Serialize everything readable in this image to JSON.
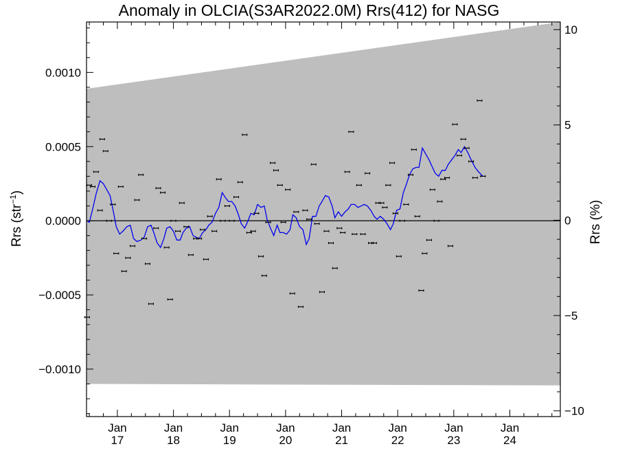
{
  "title": "Anomaly in OLCIA(S3AR2022.0M) Rrs(412) for NASG",
  "chart_data": {
    "type": "scatter",
    "title": "Anomaly in OLCIA(S3AR2022.0M) Rrs(412) for NASG",
    "ylabel_left_prefix": "Rrs (str",
    "ylabel_left_exp": "−1",
    "ylabel_left_suffix": ")",
    "ylabel_right": "Rrs (%)",
    "x_ticklabels": [
      {
        "month": "Jan",
        "year": "17",
        "x": 2017.0
      },
      {
        "month": "Jan",
        "year": "18",
        "x": 2018.0
      },
      {
        "month": "Jan",
        "year": "19",
        "x": 2019.0
      },
      {
        "month": "Jan",
        "year": "20",
        "x": 2020.0
      },
      {
        "month": "Jan",
        "year": "21",
        "x": 2021.0
      },
      {
        "month": "Jan",
        "year": "22",
        "x": 2022.0
      },
      {
        "month": "Jan",
        "year": "23",
        "x": 2023.0
      },
      {
        "month": "Jan",
        "year": "24",
        "x": 2024.0
      }
    ],
    "xlim": [
      2016.45,
      2024.9
    ],
    "ylim_left": [
      -0.00132,
      0.00134
    ],
    "ylim_right": [
      -10.3,
      10.4
    ],
    "y_left_ticks": [
      {
        "v": 0.001,
        "label": "0.0010"
      },
      {
        "v": 0.0005,
        "label": "0.0005"
      },
      {
        "v": 0.0,
        "label": "0.0000"
      },
      {
        "v": -0.0005,
        "label": "−0.0005"
      },
      {
        "v": -0.001,
        "label": "−0.0010"
      }
    ],
    "y_right_ticks": [
      {
        "v": 10,
        "label": "10"
      },
      {
        "v": 5,
        "label": "5"
      },
      {
        "v": 0,
        "label": "0"
      },
      {
        "v": -5,
        "label": "−5"
      },
      {
        "v": -10,
        "label": "−10"
      }
    ],
    "envelope": {
      "color": "#bebebe",
      "upper": [
        [
          2016.45,
          0.00089
        ],
        [
          2024.9,
          0.00134
        ]
      ],
      "lower": [
        [
          2016.45,
          -0.0011
        ],
        [
          2024.9,
          -0.00111
        ]
      ]
    },
    "zero_line": true,
    "series": [
      {
        "kind": "points_with_errorbars",
        "color": "#000000",
        "points": [
          [
            2016.46,
            -0.00065
          ],
          [
            2016.5,
            0.00024
          ],
          [
            2016.56,
            0.00023
          ],
          [
            2016.62,
            0.00033
          ],
          [
            2016.69,
            7e-05
          ],
          [
            2016.73,
            0.00055
          ],
          [
            2016.79,
            0.00047
          ],
          [
            2016.85,
            0.0
          ],
          [
            2016.92,
            0.00011
          ],
          [
            2016.98,
            -0.00022
          ],
          [
            2017.06,
            0.00023
          ],
          [
            2017.12,
            -0.00034
          ],
          [
            2017.19,
            -0.00025
          ],
          [
            2017.27,
            -0.00017
          ],
          [
            2017.35,
            0.00014
          ],
          [
            2017.42,
            0.00031
          ],
          [
            2017.48,
            -0.00012
          ],
          [
            2017.54,
            -0.00029
          ],
          [
            2017.6,
            -0.00056
          ],
          [
            2017.69,
            -5e-05
          ],
          [
            2017.73,
            0.00022
          ],
          [
            2017.81,
            0.00019
          ],
          [
            2017.88,
            -0.00018
          ],
          [
            2017.94,
            -0.00053
          ],
          [
            2018.0,
            0.0
          ],
          [
            2018.08,
            -7e-05
          ],
          [
            2018.15,
            0.00012
          ],
          [
            2018.23,
            -4e-05
          ],
          [
            2018.31,
            -0.00023
          ],
          [
            2018.4,
            -0.00012
          ],
          [
            2018.46,
            -0.00012
          ],
          [
            2018.52,
            -6e-05
          ],
          [
            2018.58,
            -0.00026
          ],
          [
            2018.65,
            3e-05
          ],
          [
            2018.73,
            -7e-05
          ],
          [
            2018.81,
            0.00028
          ],
          [
            2018.88,
            0.0
          ],
          [
            2018.96,
            0.0001
          ],
          [
            2019.04,
            0.0
          ],
          [
            2019.12,
            0.00016
          ],
          [
            2019.19,
            0.00026
          ],
          [
            2019.27,
            0.00058
          ],
          [
            2019.35,
            -8e-05
          ],
          [
            2019.42,
            -7e-05
          ],
          [
            2019.48,
            5e-05
          ],
          [
            2019.56,
            -0.00024
          ],
          [
            2019.62,
            -0.00037
          ],
          [
            2019.69,
            -1e-05
          ],
          [
            2019.77,
            0.00039
          ],
          [
            2019.83,
            0.00034
          ],
          [
            2019.9,
            0.00024
          ],
          [
            2019.96,
            -1e-05
          ],
          [
            2020.04,
            0.00021
          ],
          [
            2020.12,
            -0.00049
          ],
          [
            2020.19,
            6e-05
          ],
          [
            2020.27,
            -0.00058
          ],
          [
            2020.35,
            7e-05
          ],
          [
            2020.42,
            1e-05
          ],
          [
            2020.5,
            0.00038
          ],
          [
            2020.56,
            -2e-05
          ],
          [
            2020.65,
            -0.00048
          ],
          [
            2020.73,
            -7e-05
          ],
          [
            2020.81,
            -0.00015
          ],
          [
            2020.88,
            -0.00032
          ],
          [
            2020.96,
            -5e-05
          ],
          [
            2021.02,
            -8e-05
          ],
          [
            2021.1,
            0.00033
          ],
          [
            2021.17,
            0.0006
          ],
          [
            2021.23,
            -9e-05
          ],
          [
            2021.31,
            0.00024
          ],
          [
            2021.38,
            -9e-05
          ],
          [
            2021.46,
            0.00032
          ],
          [
            2021.52,
            -0.00015
          ],
          [
            2021.58,
            -0.00015
          ],
          [
            2021.65,
            0.00012
          ],
          [
            2021.71,
            0.00012
          ],
          [
            2021.77,
            9e-05
          ],
          [
            2021.83,
            0.00024
          ],
          [
            2021.9,
            0.00039
          ],
          [
            2021.96,
            5e-05
          ],
          [
            2022.02,
            -0.00024
          ],
          [
            2022.08,
            0.0
          ],
          [
            2022.15,
            0.00011
          ],
          [
            2022.23,
            0.00031
          ],
          [
            2022.29,
            0.00048
          ],
          [
            2022.35,
            3e-05
          ],
          [
            2022.42,
            -0.00047
          ],
          [
            2022.48,
            -0.00022
          ],
          [
            2022.56,
            -0.00013
          ],
          [
            2022.62,
            0.00021
          ],
          [
            2022.69,
            0.0
          ],
          [
            2022.75,
            0.00013
          ],
          [
            2022.81,
            0.00028
          ],
          [
            2022.88,
            0.00029
          ],
          [
            2022.94,
            -0.00017
          ],
          [
            2023.02,
            0.00065
          ],
          [
            2023.1,
            0.00044
          ],
          [
            2023.17,
            0.00055
          ],
          [
            2023.23,
            0.00049
          ],
          [
            2023.31,
            0.0004
          ],
          [
            2023.38,
            0.00029
          ],
          [
            2023.46,
            0.00081
          ],
          [
            2023.52,
            0.0003
          ]
        ]
      },
      {
        "kind": "line",
        "color": "#0000ee",
        "points": [
          [
            2016.46,
            0.0
          ],
          [
            2016.5,
            -1e-05
          ],
          [
            2016.56,
            8e-05
          ],
          [
            2016.62,
            0.00018
          ],
          [
            2016.69,
            0.00027
          ],
          [
            2016.75,
            0.00025
          ],
          [
            2016.81,
            0.00021
          ],
          [
            2016.87,
            0.00017
          ],
          [
            2016.93,
            6e-05
          ],
          [
            2016.98,
            -4e-05
          ],
          [
            2017.04,
            -9e-05
          ],
          [
            2017.1,
            -7e-05
          ],
          [
            2017.17,
            -4e-05
          ],
          [
            2017.23,
            -3e-05
          ],
          [
            2017.29,
            -0.00012
          ],
          [
            2017.35,
            -0.00014
          ],
          [
            2017.42,
            -0.00013
          ],
          [
            2017.48,
            -0.00011
          ],
          [
            2017.54,
            -4e-05
          ],
          [
            2017.6,
            -3e-05
          ],
          [
            2017.65,
            -8e-05
          ],
          [
            2017.71,
            -0.00015
          ],
          [
            2017.77,
            -0.00018
          ],
          [
            2017.83,
            -0.00012
          ],
          [
            2017.88,
            -5e-05
          ],
          [
            2017.94,
            -4e-05
          ],
          [
            2018.0,
            -7e-05
          ],
          [
            2018.06,
            -0.00013
          ],
          [
            2018.12,
            -0.00013
          ],
          [
            2018.17,
            -8e-05
          ],
          [
            2018.23,
            -5e-05
          ],
          [
            2018.29,
            -4e-05
          ],
          [
            2018.35,
            -0.0001
          ],
          [
            2018.4,
            -0.00011
          ],
          [
            2018.46,
            -0.00012
          ],
          [
            2018.52,
            -8e-05
          ],
          [
            2018.58,
            -6e-05
          ],
          [
            2018.63,
            -3e-05
          ],
          [
            2018.69,
            -1e-05
          ],
          [
            2018.75,
            5e-05
          ],
          [
            2018.81,
            9e-05
          ],
          [
            2018.87,
            0.00019
          ],
          [
            2018.92,
            0.00016
          ],
          [
            2018.98,
            0.00013
          ],
          [
            2019.04,
            0.00013
          ],
          [
            2019.1,
            0.0001
          ],
          [
            2019.15,
            5e-05
          ],
          [
            2019.21,
            -2e-05
          ],
          [
            2019.27,
            -5e-05
          ],
          [
            2019.33,
            0.0
          ],
          [
            2019.38,
            5e-05
          ],
          [
            2019.44,
            4e-05
          ],
          [
            2019.5,
            0.00011
          ],
          [
            2019.56,
            9e-05
          ],
          [
            2019.62,
            0.0001
          ],
          [
            2019.67,
            1e-05
          ],
          [
            2019.73,
            -5e-05
          ],
          [
            2019.79,
            -0.0001
          ],
          [
            2019.85,
            -3e-05
          ],
          [
            2019.9,
            -8e-05
          ],
          [
            2019.96,
            -8e-05
          ],
          [
            2020.02,
            -9e-05
          ],
          [
            2020.08,
            -6e-05
          ],
          [
            2020.13,
            4e-05
          ],
          [
            2020.19,
            2e-05
          ],
          [
            2020.25,
            -4e-05
          ],
          [
            2020.31,
            -6e-05
          ],
          [
            2020.37,
            -0.00016
          ],
          [
            2020.42,
            -0.00012
          ],
          [
            2020.48,
            3e-05
          ],
          [
            2020.54,
            3e-05
          ],
          [
            2020.6,
            0.0001
          ],
          [
            2020.65,
            0.00013
          ],
          [
            2020.71,
            0.00017
          ],
          [
            2020.77,
            0.00016
          ],
          [
            2020.83,
            0.0001
          ],
          [
            2020.88,
            2e-05
          ],
          [
            2020.94,
            6e-05
          ],
          [
            2021.0,
            3e-05
          ],
          [
            2021.06,
            6e-05
          ],
          [
            2021.12,
            8e-05
          ],
          [
            2021.17,
            0.00011
          ],
          [
            2021.23,
            0.00011
          ],
          [
            2021.29,
            9e-05
          ],
          [
            2021.35,
            0.0001
          ],
          [
            2021.4,
            0.00011
          ],
          [
            2021.46,
            0.0001
          ],
          [
            2021.52,
            7e-05
          ],
          [
            2021.58,
            3e-05
          ],
          [
            2021.63,
            1e-05
          ],
          [
            2021.69,
            3e-05
          ],
          [
            2021.75,
            1e-05
          ],
          [
            2021.81,
            -2e-05
          ],
          [
            2021.87,
            -6e-05
          ],
          [
            2021.92,
            -2e-05
          ],
          [
            2021.98,
            7e-05
          ],
          [
            2022.04,
            8e-05
          ],
          [
            2022.1,
            0.00019
          ],
          [
            2022.15,
            0.00024
          ],
          [
            2022.21,
            0.00031
          ],
          [
            2022.27,
            0.00035
          ],
          [
            2022.33,
            0.00036
          ],
          [
            2022.38,
            0.00036
          ],
          [
            2022.44,
            0.00049
          ],
          [
            2022.5,
            0.00045
          ],
          [
            2022.56,
            0.00041
          ],
          [
            2022.62,
            0.00036
          ],
          [
            2022.67,
            0.00032
          ],
          [
            2022.73,
            0.0003
          ],
          [
            2022.79,
            0.00034
          ],
          [
            2022.85,
            0.00034
          ],
          [
            2022.9,
            0.00038
          ],
          [
            2022.96,
            0.00041
          ],
          [
            2023.02,
            0.00044
          ],
          [
            2023.08,
            0.00048
          ],
          [
            2023.13,
            0.00046
          ],
          [
            2023.19,
            0.0005
          ],
          [
            2023.25,
            0.00046
          ],
          [
            2023.31,
            0.00041
          ],
          [
            2023.38,
            0.00036
          ],
          [
            2023.44,
            0.00033
          ],
          [
            2023.52,
            0.0003
          ]
        ]
      }
    ]
  }
}
